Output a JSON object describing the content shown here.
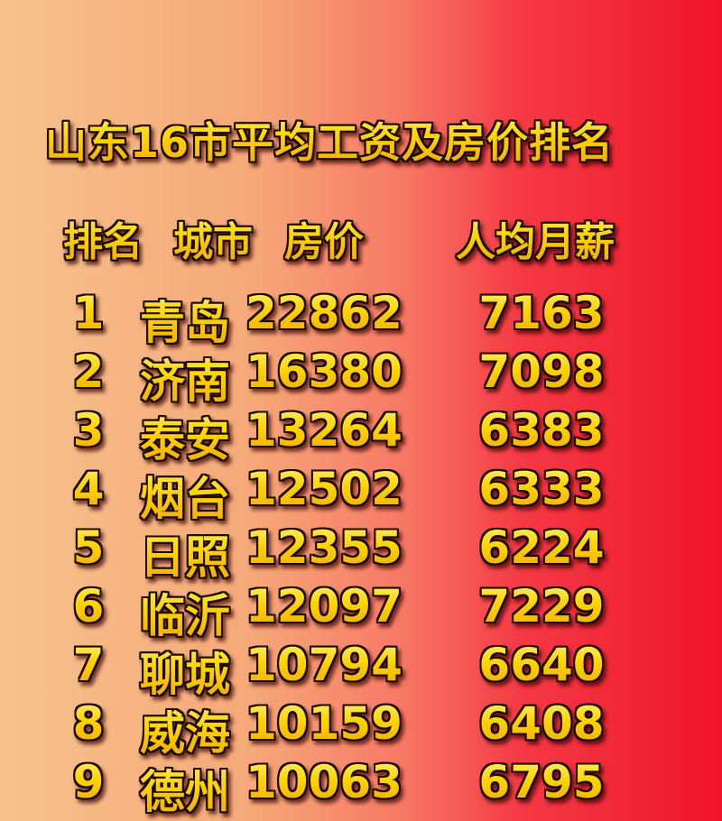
{
  "title": "山东16市平均工资及房价排名",
  "headers": {
    "rank": "排名",
    "city": "城市",
    "price": "房价",
    "salary": "人均月薪"
  },
  "rows": [
    {
      "rank": "1",
      "city": "青岛",
      "price": "22862",
      "salary": "7163"
    },
    {
      "rank": "2",
      "city": "济南",
      "price": "16380",
      "salary": "7098"
    },
    {
      "rank": "3",
      "city": "泰安",
      "price": "13264",
      "salary": "6383"
    },
    {
      "rank": "4",
      "city": "烟台",
      "price": "12502",
      "salary": "6333"
    },
    {
      "rank": "5",
      "city": "日照",
      "price": "12355",
      "salary": "6224"
    },
    {
      "rank": "6",
      "city": "临沂",
      "price": "12097",
      "salary": "7229"
    },
    {
      "rank": "7",
      "city": "聊城",
      "price": "10794",
      "salary": "6640"
    },
    {
      "rank": "8",
      "city": "威海",
      "price": "10159",
      "salary": "6408"
    },
    {
      "rank": "9",
      "city": "德州",
      "price": "10063",
      "salary": "6795"
    }
  ],
  "colors": {
    "background_left": "#f6c28c",
    "background_right": "#f01428",
    "text_fill": "#ffd400",
    "text_outline": "#1a0a00"
  }
}
